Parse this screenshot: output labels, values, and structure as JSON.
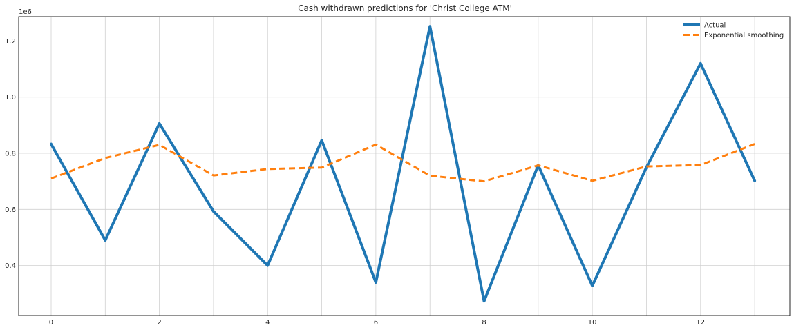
{
  "chart_data": {
    "type": "line",
    "title": "Cash withdrawn predictions for 'Christ College ATM'",
    "xlabel": "",
    "ylabel": "",
    "offset_label": "1e6",
    "xlim": [
      -0.6,
      13.65
    ],
    "ylim": [
      222000,
      1287000
    ],
    "x": [
      0,
      1,
      2,
      3,
      4,
      5,
      6,
      7,
      8,
      9,
      10,
      11,
      12,
      13
    ],
    "x_ticks": [
      0,
      2,
      4,
      6,
      8,
      10,
      12
    ],
    "x_tick_labels": [
      "0",
      "2",
      "4",
      "6",
      "8",
      "10",
      "12"
    ],
    "y_ticks": [
      400000,
      600000,
      800000,
      1000000,
      1200000
    ],
    "y_tick_labels": [
      "0.4",
      "0.6",
      "0.8",
      "1.0",
      "1.2"
    ],
    "grid": true,
    "legend_position": "top-right",
    "series": [
      {
        "name": "Actual",
        "color": "#1f77b4",
        "style": "solid",
        "values": [
          833000,
          490000,
          906000,
          593000,
          400000,
          846000,
          340000,
          1252000,
          273000,
          757000,
          328000,
          750000,
          1120000,
          702000
        ]
      },
      {
        "name": "Exponential smoothing",
        "color": "#ff7f0e",
        "style": "dashed",
        "values": [
          710000,
          783000,
          830000,
          721000,
          744000,
          749000,
          831000,
          720000,
          700000,
          757000,
          702000,
          753000,
          758000,
          833000
        ]
      }
    ]
  }
}
